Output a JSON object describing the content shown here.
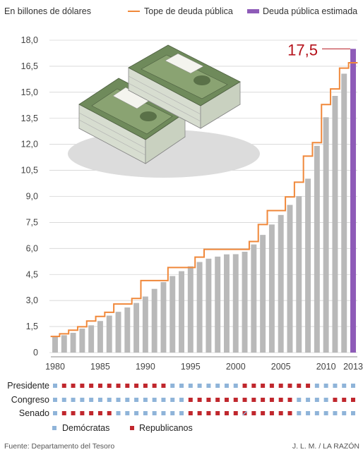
{
  "chart_data": {
    "type": "bar",
    "ylabel": "En billones de dólares",
    "ylim": [
      0,
      18
    ],
    "yticks": [
      "0",
      "1,5",
      "3,0",
      "4,5",
      "6,0",
      "7,5",
      "9,0",
      "10,5",
      "12,0",
      "13,5",
      "15,0",
      "16,5",
      "18,0"
    ],
    "xtick_labels": [
      "1980",
      "1985",
      "1990",
      "1995",
      "2000",
      "2005",
      "2010",
      "2013"
    ],
    "x": [
      1980,
      1981,
      1982,
      1983,
      1984,
      1985,
      1986,
      1987,
      1988,
      1989,
      1990,
      1991,
      1992,
      1993,
      1994,
      1995,
      1996,
      1997,
      1998,
      1999,
      2000,
      2001,
      2002,
      2003,
      2004,
      2005,
      2006,
      2007,
      2008,
      2009,
      2010,
      2011,
      2012,
      2013
    ],
    "series": [
      {
        "name": "Tope de deuda pública",
        "type": "step",
        "color": "#f0883a",
        "values": [
          0.93,
          1.08,
          1.29,
          1.49,
          1.82,
          2.08,
          2.32,
          2.8,
          2.8,
          3.12,
          4.15,
          4.15,
          4.15,
          4.9,
          4.9,
          4.9,
          5.5,
          5.95,
          5.95,
          5.95,
          5.95,
          5.95,
          6.4,
          7.38,
          8.18,
          8.18,
          8.97,
          9.82,
          11.32,
          12.1,
          14.29,
          15.19,
          16.39,
          16.7
        ]
      },
      {
        "name": "Deuda pública",
        "type": "bar",
        "color": "#b9b9b9",
        "values": [
          0.91,
          1.0,
          1.14,
          1.38,
          1.57,
          1.82,
          2.13,
          2.35,
          2.6,
          2.86,
          3.23,
          3.67,
          4.06,
          4.41,
          4.69,
          4.97,
          5.22,
          5.41,
          5.53,
          5.66,
          5.67,
          5.81,
          6.23,
          6.78,
          7.38,
          7.93,
          8.51,
          9.01,
          10.02,
          11.91,
          13.56,
          14.79,
          16.07,
          16.74
        ]
      },
      {
        "name": "Deuda pública estimada",
        "type": "bar",
        "color": "#8e5bb8",
        "x": 2013,
        "value": 17.5
      }
    ],
    "annotation": {
      "text": "17,5",
      "x": 2013,
      "y": 17.5,
      "color": "#b5121b"
    },
    "legend": [
      "Tope de deuda pública",
      "Deuda pública estimada"
    ],
    "legend_position": "top"
  },
  "control_rows": {
    "labels": [
      "Presidente",
      "Congreso",
      "Senado"
    ],
    "colors": {
      "D": "#8fb4d9",
      "R": "#c0272d"
    },
    "rows": [
      [
        "D",
        "R",
        "R",
        "R",
        "R",
        "R",
        "R",
        "R",
        "R",
        "R",
        "R",
        "R",
        "R",
        "D",
        "D",
        "D",
        "D",
        "D",
        "D",
        "D",
        "D",
        "R",
        "R",
        "R",
        "R",
        "R",
        "R",
        "R",
        "R",
        "D",
        "D",
        "D",
        "D",
        "D"
      ],
      [
        "D",
        "D",
        "D",
        "D",
        "D",
        "D",
        "D",
        "D",
        "D",
        "D",
        "D",
        "D",
        "D",
        "D",
        "D",
        "R",
        "R",
        "R",
        "R",
        "R",
        "R",
        "R",
        "R",
        "R",
        "R",
        "R",
        "R",
        "D",
        "D",
        "D",
        "D",
        "R",
        "R",
        "R"
      ],
      [
        "D",
        "R",
        "R",
        "R",
        "R",
        "R",
        "R",
        "D",
        "D",
        "D",
        "D",
        "D",
        "D",
        "D",
        "D",
        "R",
        "R",
        "R",
        "R",
        "R",
        "R",
        "M",
        "R",
        "R",
        "R",
        "R",
        "R",
        "D",
        "D",
        "D",
        "D",
        "D",
        "D",
        "D"
      ]
    ],
    "legend": [
      {
        "key": "D",
        "label": "Demócratas"
      },
      {
        "key": "R",
        "label": "Republicanos"
      }
    ]
  },
  "footer": {
    "source": "Fuente: Departamento del Tesoro",
    "credit": "J. L. M. / LA RAZÓN"
  }
}
